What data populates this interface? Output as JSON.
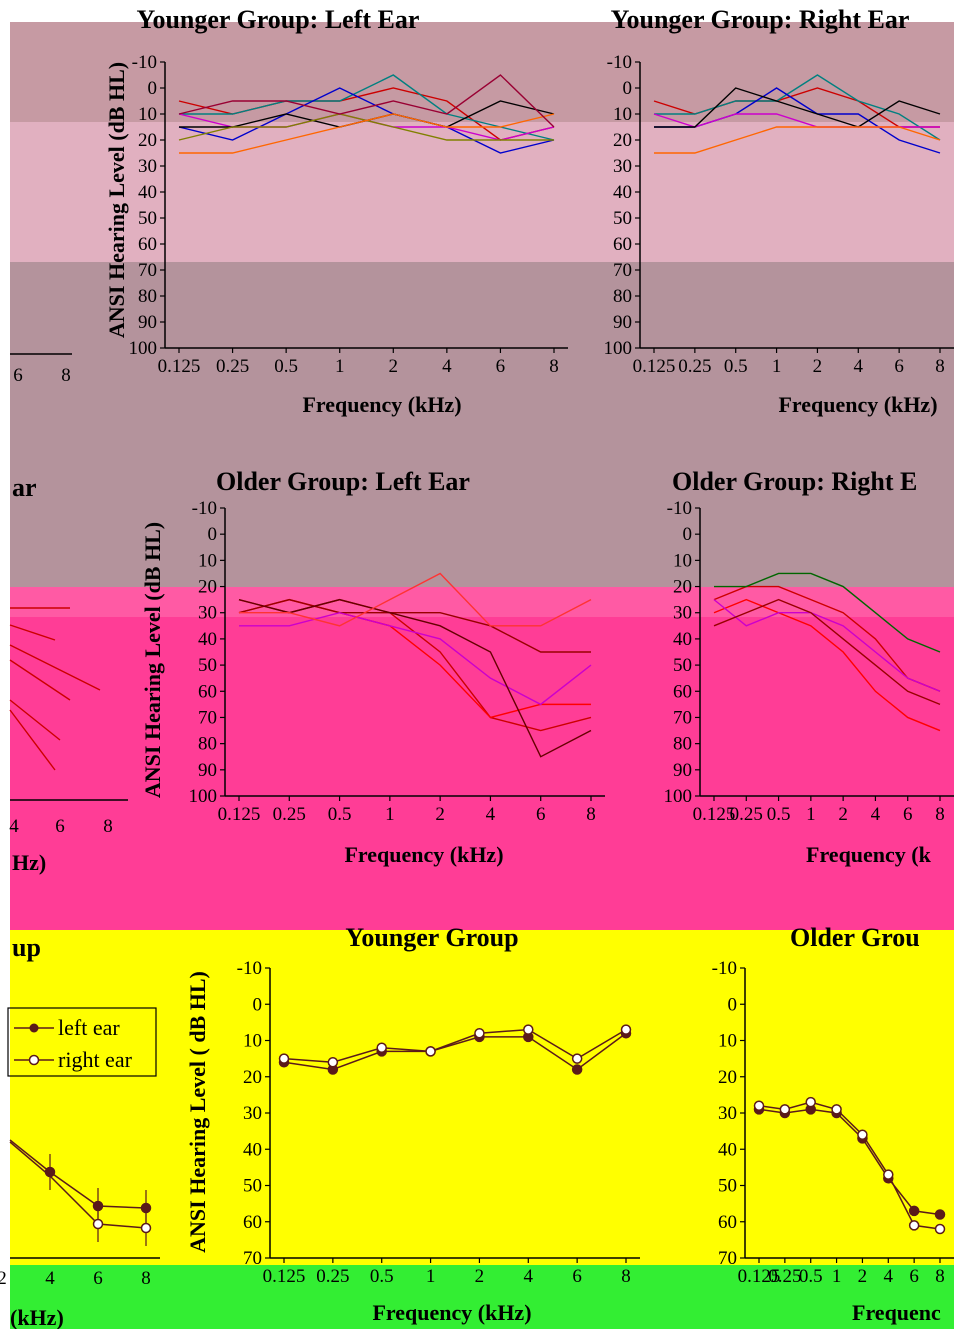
{
  "colors": {
    "band1": "#c69aa3",
    "band1_inner": "#ffffff",
    "band2": "#b4939c",
    "band3": "#ff3d96",
    "band3_top": "#ff5aa4",
    "band4": "#ffff00",
    "band5": "#33ee33",
    "left_margin": "#ffffff",
    "axis": "#000000"
  },
  "section1": {
    "left": {
      "title": "Younger Group: Left Ear",
      "xlabel": "Frequency (kHz)",
      "ylabel": "ANSI Hearing Level (dB HL)"
    },
    "right": {
      "title": "Younger Group: Right Ear",
      "xlabel": "Frequency (kHz)"
    },
    "partial_x_ticks": [
      "6",
      "8"
    ]
  },
  "section2": {
    "partial_title": "ar",
    "left": {
      "title": "Older Group: Left Ear",
      "xlabel": "Frequency (kHz)",
      "ylabel": "ANSI Hearing Level (dB HL)"
    },
    "right": {
      "title": "Older Group: Right E",
      "xlabel": "Frequency (k"
    },
    "partial_x_ticks": [
      "4",
      "6",
      "8"
    ],
    "partial_xlabel": "Hz)"
  },
  "section3": {
    "partial_title": "up",
    "legend": [
      "left ear",
      "right ear"
    ],
    "center": {
      "title": "Younger Group",
      "xlabel": "Frequency (kHz)",
      "ylabel": "ANSI Hearing Level ( dB HL)"
    },
    "right": {
      "title": "Older Grou",
      "xlabel": "Frequenc"
    },
    "partial_xlabel": "(kHz)",
    "partial_x_ticks": [
      "2",
      "4",
      "6",
      "8"
    ]
  },
  "y_ticks_full": [
    "-10",
    "0",
    "10",
    "20",
    "30",
    "40",
    "50",
    "60",
    "70",
    "80",
    "90",
    "100"
  ],
  "y_ticks_short": [
    "-10",
    "0",
    "10",
    "20",
    "30",
    "40",
    "50",
    "60",
    "70"
  ],
  "x_ticks": [
    "0.125",
    "0.25",
    "0.5",
    "1",
    "2",
    "4",
    "6",
    "8"
  ],
  "chart_data": [
    {
      "type": "line",
      "title": "Younger Group: Left Ear",
      "xlabel": "Frequency (kHz)",
      "ylabel": "ANSI Hearing Level (dB HL)",
      "categories": [
        "0.125",
        "0.25",
        "0.5",
        "1",
        "2",
        "4",
        "6",
        "8"
      ],
      "ylim": [
        -10,
        100
      ],
      "y_inverted": true,
      "series": [
        {
          "color": "#cc0000",
          "values": [
            5,
            10,
            5,
            5,
            0,
            5,
            20,
            15
          ]
        },
        {
          "color": "#008080",
          "values": [
            10,
            10,
            5,
            5,
            -5,
            10,
            15,
            20
          ]
        },
        {
          "color": "#0000cc",
          "values": [
            15,
            20,
            10,
            0,
            10,
            15,
            25,
            20
          ]
        },
        {
          "color": "#cc00cc",
          "values": [
            10,
            15,
            15,
            10,
            15,
            15,
            20,
            15
          ]
        },
        {
          "color": "#000000",
          "values": [
            15,
            15,
            10,
            15,
            10,
            15,
            5,
            10
          ]
        },
        {
          "color": "#808000",
          "values": [
            20,
            15,
            15,
            10,
            15,
            20,
            20,
            20
          ]
        },
        {
          "color": "#ff6600",
          "values": [
            25,
            25,
            20,
            15,
            10,
            15,
            15,
            10
          ]
        },
        {
          "color": "#990033",
          "values": [
            10,
            5,
            5,
            10,
            5,
            10,
            -5,
            15
          ]
        }
      ]
    },
    {
      "type": "line",
      "title": "Younger Group: Right Ear",
      "xlabel": "Frequency (kHz)",
      "ylabel": "ANSI Hearing Level (dB HL)",
      "categories": [
        "0.125",
        "0.25",
        "0.5",
        "1",
        "2",
        "4",
        "6",
        "8"
      ],
      "ylim": [
        -10,
        100
      ],
      "y_inverted": true,
      "series": [
        {
          "color": "#cc0000",
          "values": [
            5,
            10,
            5,
            5,
            0,
            5,
            15,
            15
          ]
        },
        {
          "color": "#008080",
          "values": [
            10,
            10,
            5,
            5,
            -5,
            5,
            10,
            20
          ]
        },
        {
          "color": "#0000cc",
          "values": [
            15,
            15,
            10,
            0,
            10,
            10,
            20,
            25
          ]
        },
        {
          "color": "#cc00cc",
          "values": [
            10,
            15,
            10,
            10,
            15,
            15,
            15,
            15
          ]
        },
        {
          "color": "#000000",
          "values": [
            15,
            15,
            0,
            5,
            10,
            15,
            5,
            10
          ]
        },
        {
          "color": "#ff6600",
          "values": [
            25,
            25,
            20,
            15,
            15,
            15,
            15,
            20
          ]
        }
      ]
    },
    {
      "type": "line",
      "title": "Older Group: Left Ear",
      "xlabel": "Frequency (kHz)",
      "ylabel": "ANSI Hearing Level (dB HL)",
      "categories": [
        "0.125",
        "0.25",
        "0.5",
        "1",
        "2",
        "4",
        "6",
        "8"
      ],
      "ylim": [
        -10,
        100
      ],
      "y_inverted": true,
      "series": [
        {
          "color": "#cc0000",
          "values": [
            25,
            30,
            25,
            30,
            45,
            70,
            75,
            70
          ]
        },
        {
          "color": "#ff0000",
          "values": [
            30,
            25,
            30,
            35,
            50,
            70,
            65,
            65
          ]
        },
        {
          "color": "#990000",
          "values": [
            30,
            25,
            30,
            30,
            30,
            35,
            45,
            45
          ]
        },
        {
          "color": "#cc00cc",
          "values": [
            35,
            35,
            30,
            35,
            40,
            55,
            65,
            50
          ]
        },
        {
          "color": "#660000",
          "values": [
            25,
            30,
            25,
            30,
            35,
            45,
            85,
            75
          ]
        },
        {
          "color": "#ff3333",
          "values": [
            30,
            30,
            35,
            25,
            15,
            35,
            35,
            25
          ]
        }
      ]
    },
    {
      "type": "line",
      "title": "Older Group: Right Ear",
      "xlabel": "Frequency (kHz)",
      "ylabel": "ANSI Hearing Level (dB HL)",
      "categories": [
        "0.125",
        "0.25",
        "0.5",
        "1",
        "2",
        "4",
        "6",
        "8"
      ],
      "ylim": [
        -10,
        100
      ],
      "y_inverted": true,
      "series": [
        {
          "color": "#cc0000",
          "values": [
            25,
            20,
            20,
            25,
            30,
            40,
            55,
            60
          ]
        },
        {
          "color": "#ff0000",
          "values": [
            30,
            25,
            30,
            35,
            45,
            60,
            70,
            75
          ]
        },
        {
          "color": "#cc00cc",
          "values": [
            25,
            35,
            30,
            30,
            35,
            45,
            55,
            60
          ]
        },
        {
          "color": "#006600",
          "values": [
            20,
            20,
            15,
            15,
            20,
            30,
            40,
            45
          ]
        },
        {
          "color": "#990000",
          "values": [
            35,
            30,
            25,
            30,
            40,
            50,
            60,
            65
          ]
        }
      ]
    },
    {
      "type": "line",
      "title": "Younger Group",
      "xlabel": "Frequency (kHz)",
      "ylabel": "ANSI Hearing Level ( dB HL)",
      "categories": [
        "0.125",
        "0.25",
        "0.5",
        "1",
        "2",
        "4",
        "6",
        "8"
      ],
      "ylim": [
        -10,
        70
      ],
      "y_inverted": true,
      "series": [
        {
          "name": "left ear",
          "marker": "filled",
          "values": [
            16,
            18,
            13,
            13,
            9,
            9,
            18,
            8
          ]
        },
        {
          "name": "right ear",
          "marker": "open",
          "values": [
            15,
            16,
            12,
            13,
            8,
            7,
            15,
            7
          ]
        }
      ]
    },
    {
      "type": "line",
      "title": "Older Group",
      "xlabel": "Frequency (kHz)",
      "ylabel": "ANSI Hearing Level ( dB HL)",
      "categories": [
        "0.125",
        "0.25",
        "0.5",
        "1",
        "2",
        "4",
        "6",
        "8"
      ],
      "ylim": [
        -10,
        70
      ],
      "y_inverted": true,
      "series": [
        {
          "name": "left ear",
          "marker": "filled",
          "values": [
            29,
            30,
            29,
            30,
            37,
            48,
            57,
            58
          ]
        },
        {
          "name": "right ear",
          "marker": "open",
          "values": [
            28,
            29,
            27,
            29,
            36,
            47,
            61,
            62
          ]
        }
      ]
    }
  ]
}
